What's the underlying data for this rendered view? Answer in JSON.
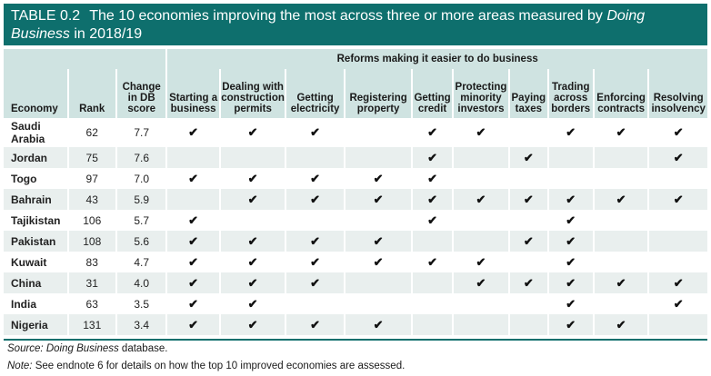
{
  "table": {
    "number": "TABLE 0.2",
    "title_prefix": "The 10 economies improving the most across three or more areas measured by ",
    "title_italic": "Doing Business",
    "title_suffix": " in 2018/19",
    "group_header": "Reforms making it easier to do business",
    "columns": {
      "economy": "Economy",
      "rank": "Rank",
      "change": [
        "Change",
        "in DB",
        "score"
      ],
      "reforms": [
        [
          "Starting a",
          "business"
        ],
        [
          "Dealing with",
          "construction",
          "permits"
        ],
        [
          "Getting",
          "electricity"
        ],
        [
          "Registering",
          "property"
        ],
        [
          "Getting",
          "credit"
        ],
        [
          "Protecting",
          "minority",
          "investors"
        ],
        [
          "Paying",
          "taxes"
        ],
        [
          "Trading",
          "across",
          "borders"
        ],
        [
          "Enforcing",
          "contracts"
        ],
        [
          "Resolving",
          "insolvency"
        ]
      ]
    },
    "check_symbol": "✔",
    "rows": [
      {
        "economy": "Saudi Arabia",
        "economy_lines": [
          "Saudi",
          "Arabia"
        ],
        "rank": "62",
        "change": "7.7",
        "reforms": [
          1,
          1,
          1,
          0,
          1,
          1,
          0,
          1,
          1,
          1
        ]
      },
      {
        "economy": "Jordan",
        "rank": "75",
        "change": "7.6",
        "reforms": [
          0,
          0,
          0,
          0,
          1,
          0,
          1,
          0,
          0,
          1
        ]
      },
      {
        "economy": "Togo",
        "rank": "97",
        "change": "7.0",
        "reforms": [
          1,
          1,
          1,
          1,
          1,
          0,
          0,
          0,
          0,
          0
        ]
      },
      {
        "economy": "Bahrain",
        "rank": "43",
        "change": "5.9",
        "reforms": [
          0,
          1,
          1,
          1,
          1,
          1,
          1,
          1,
          1,
          1
        ]
      },
      {
        "economy": "Tajikistan",
        "rank": "106",
        "change": "5.7",
        "reforms": [
          1,
          0,
          0,
          0,
          1,
          0,
          0,
          1,
          0,
          0
        ]
      },
      {
        "economy": "Pakistan",
        "rank": "108",
        "change": "5.6",
        "reforms": [
          1,
          1,
          1,
          1,
          0,
          0,
          1,
          1,
          0,
          0
        ]
      },
      {
        "economy": "Kuwait",
        "rank": "83",
        "change": "4.7",
        "reforms": [
          1,
          1,
          1,
          1,
          1,
          1,
          0,
          1,
          0,
          0
        ]
      },
      {
        "economy": "China",
        "rank": "31",
        "change": "4.0",
        "reforms": [
          1,
          1,
          1,
          0,
          0,
          1,
          1,
          1,
          1,
          1
        ]
      },
      {
        "economy": "India",
        "rank": "63",
        "change": "3.5",
        "reforms": [
          1,
          1,
          0,
          0,
          0,
          0,
          0,
          1,
          0,
          1
        ]
      },
      {
        "economy": "Nigeria",
        "rank": "131",
        "change": "3.4",
        "reforms": [
          1,
          1,
          1,
          1,
          0,
          0,
          0,
          1,
          1,
          0
        ]
      }
    ]
  },
  "footer": {
    "source_label": "Source: ",
    "source_italic": "Doing Business",
    "source_suffix": " database.",
    "note_label": "Note:",
    "note_text": " See endnote 6 for details on how the top 10 improved economies are assessed."
  },
  "colors": {
    "header_bg": "#0e6f6d",
    "subheader_bg": "#cfe3e1",
    "alt_row_bg": "#e9efee"
  }
}
